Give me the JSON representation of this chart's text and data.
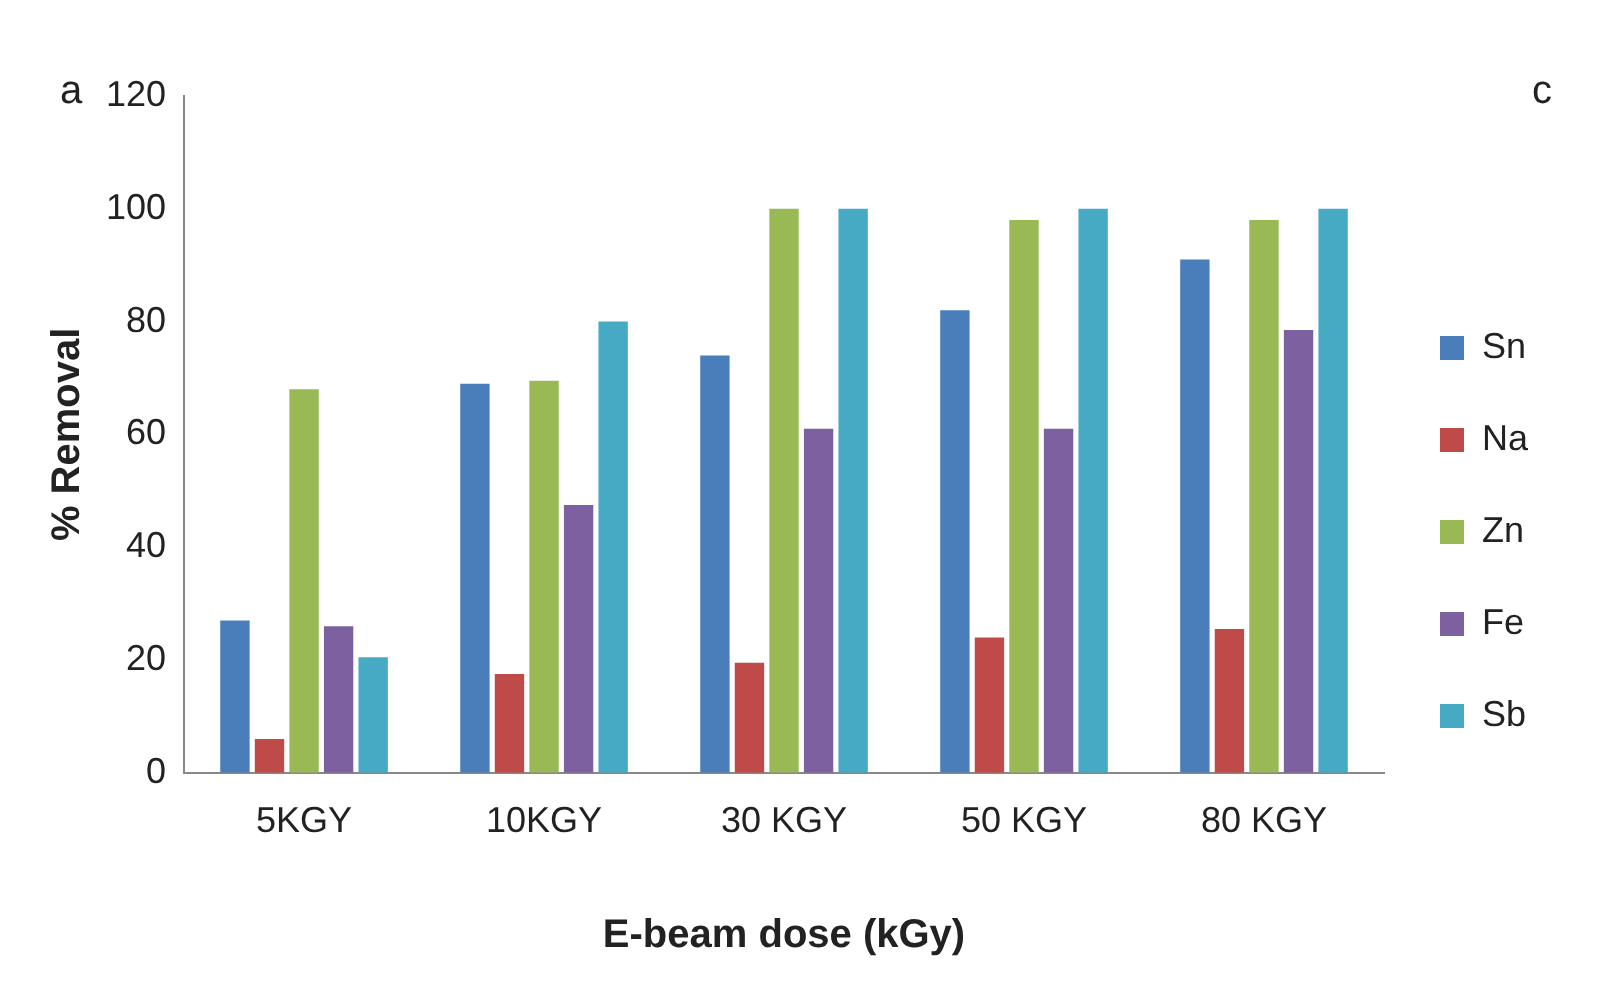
{
  "chart_data": {
    "type": "bar",
    "xlabel": "E-beam dose (kGy)",
    "ylabel": "% Removal",
    "annotations": [
      "a",
      "c"
    ],
    "categories": [
      "5KGY",
      "10KGY",
      "30 KGY",
      "50 KGY",
      "80 KGY"
    ],
    "series": [
      {
        "name": "Sn",
        "color": "#4a7ebb",
        "values": [
          27,
          69,
          74,
          82,
          91
        ]
      },
      {
        "name": "Na",
        "color": "#be4b48",
        "values": [
          6,
          17.5,
          19.5,
          24,
          25.5
        ]
      },
      {
        "name": "Zn",
        "color": "#98b954",
        "values": [
          68,
          69.5,
          100,
          98,
          98
        ]
      },
      {
        "name": "Fe",
        "color": "#7d60a0",
        "values": [
          26,
          47.5,
          61,
          61,
          78.5
        ]
      },
      {
        "name": "Sb",
        "color": "#46aac5",
        "values": [
          20.5,
          80,
          100,
          100,
          100
        ]
      }
    ],
    "ylim": [
      0,
      120
    ],
    "yticks": [
      0,
      20,
      40,
      60,
      80,
      100,
      120
    ],
    "grid": false,
    "legend": "right"
  }
}
